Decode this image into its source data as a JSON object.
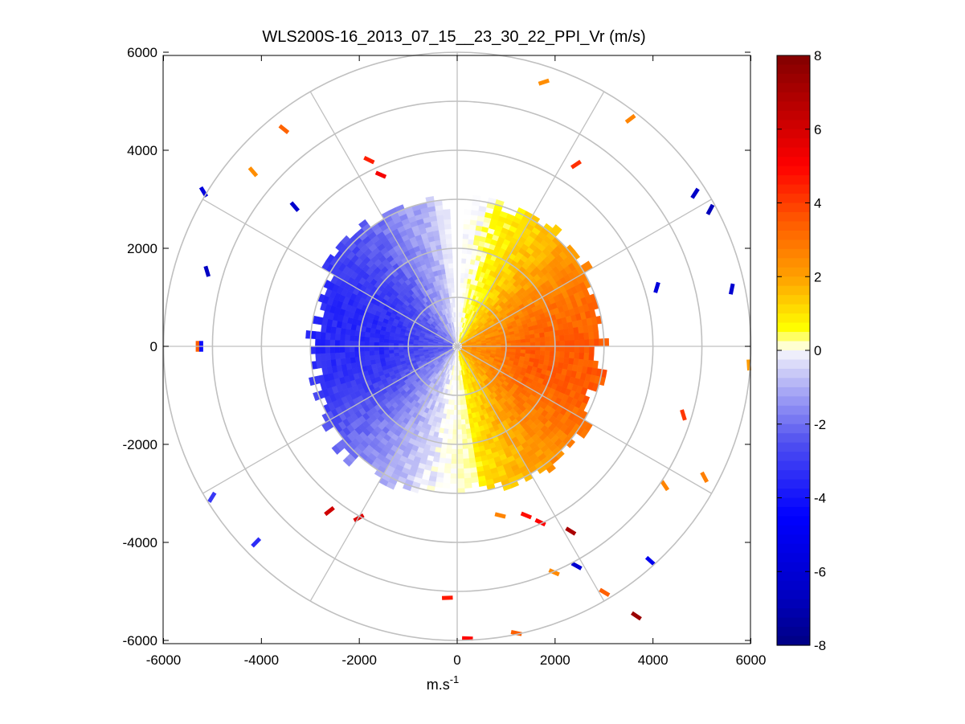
{
  "chart_data": {
    "type": "heatmap",
    "subtype": "polar-ppi",
    "title": "WLS200S-16_2013_07_15__23_30_22_PPI_Vr (m/s)",
    "xlabel_base": "m.s",
    "xlabel_sup": "-1",
    "ylabel": "",
    "xlim": [
      -6000,
      6000
    ],
    "ylim": [
      -6000,
      6000
    ],
    "xticks": [
      "-6000",
      "-4000",
      "-2000",
      "0",
      "2000",
      "4000",
      "6000"
    ],
    "yticks": [
      "6000",
      "4000",
      "2000",
      "0",
      "-2000",
      "-4000",
      "-6000"
    ],
    "grid": true,
    "range_rings": [
      1000,
      2000,
      3000,
      4000,
      5000,
      6000
    ],
    "spoke_interval_deg": 30,
    "colorbar": {
      "lim": [
        -8,
        8
      ],
      "ticks": [
        "8",
        "6",
        "4",
        "2",
        "0",
        "-2",
        "-4",
        "-6",
        "-8"
      ],
      "placement": "right"
    },
    "colors": {
      "negative_peak": "#00008c",
      "negative_strong": "#0000ff",
      "negative_weak": "#ddddf8",
      "zero": "#ffffff",
      "positive_weak": "#ffff00",
      "positive_mid": "#ff8c00",
      "positive_strong": "#ff0000",
      "positive_peak": "#8b0000",
      "grid": "#c0c0c0"
    },
    "field_model": {
      "description_values_ms": "radial velocity pattern",
      "core_range_m": 3100,
      "north_gap_deg": [
        -2,
        3
      ],
      "outer_scatter_range_m": [
        3200,
        5900
      ]
    },
    "scatter_samples": [
      {
        "x": 1770,
        "y": 5390,
        "v": 2.4
      },
      {
        "x": 3540,
        "y": 4640,
        "v": 2.6
      },
      {
        "x": 2430,
        "y": 3710,
        "v": 4.2
      },
      {
        "x": -3540,
        "y": 4430,
        "v": 3.3
      },
      {
        "x": -4170,
        "y": 3560,
        "v": 2.4
      },
      {
        "x": -1800,
        "y": 3800,
        "v": 4.5
      },
      {
        "x": -1560,
        "y": 3500,
        "v": 5.2
      },
      {
        "x": 4860,
        "y": 3120,
        "v": -6.5
      },
      {
        "x": 5170,
        "y": 2790,
        "v": -6.8
      },
      {
        "x": 5610,
        "y": 1170,
        "v": -6.2
      },
      {
        "x": 4080,
        "y": 1200,
        "v": -5.8
      },
      {
        "x": -3320,
        "y": 2850,
        "v": -6.3
      },
      {
        "x": -5180,
        "y": 3150,
        "v": -5.7
      },
      {
        "x": -5110,
        "y": 1530,
        "v": -6.6
      },
      {
        "x": -5300,
        "y": 0,
        "v": 3.4
      },
      {
        "x": 5960,
        "y": -380,
        "v": 2.1
      },
      {
        "x": 4620,
        "y": -1400,
        "v": 4.1
      },
      {
        "x": 3660,
        "y": -5500,
        "v": 7.4
      },
      {
        "x": 3010,
        "y": -5020,
        "v": 3.4
      },
      {
        "x": 1980,
        "y": -4610,
        "v": 2.5
      },
      {
        "x": 2440,
        "y": -4480,
        "v": -6.2
      },
      {
        "x": 3950,
        "y": -4380,
        "v": -5.1
      },
      {
        "x": 1210,
        "y": -5850,
        "v": 3.4
      },
      {
        "x": 210,
        "y": -5960,
        "v": 4.9
      },
      {
        "x": -200,
        "y": -5130,
        "v": 4.6
      },
      {
        "x": 1410,
        "y": -3450,
        "v": 4.8
      },
      {
        "x": 2320,
        "y": -3770,
        "v": 7.0
      },
      {
        "x": 1700,
        "y": -3590,
        "v": 5.0
      },
      {
        "x": -2010,
        "y": -3500,
        "v": 5.8
      },
      {
        "x": -2610,
        "y": -3360,
        "v": 6.1
      },
      {
        "x": -4110,
        "y": -4000,
        "v": -3.4
      },
      {
        "x": -5010,
        "y": -3080,
        "v": -3.1
      },
      {
        "x": -5230,
        "y": 0,
        "v": -4.2
      },
      {
        "x": 880,
        "y": -3450,
        "v": 2.6
      },
      {
        "x": 4240,
        "y": -2840,
        "v": 2.6
      },
      {
        "x": 5050,
        "y": -2670,
        "v": 2.7
      }
    ]
  }
}
